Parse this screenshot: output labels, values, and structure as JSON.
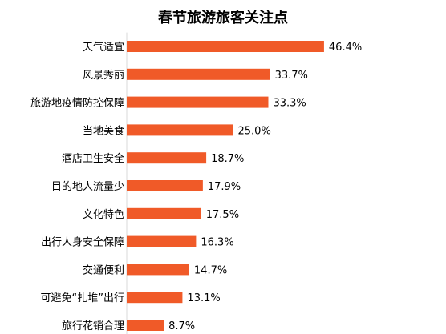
{
  "chart_data": {
    "type": "bar",
    "orientation": "horizontal",
    "title": "春节旅游旅客关注点",
    "categories": [
      "天气适宜",
      "风景秀丽",
      "旅游地疫情防控保障",
      "当地美食",
      "酒店卫生安全",
      "目的地人流量少",
      "文化特色",
      "出行人身安全保障",
      "交通便利",
      "可避免“扎堆”出行",
      "旅行花销合理"
    ],
    "values": [
      46.4,
      33.7,
      33.3,
      25.0,
      18.7,
      17.9,
      17.5,
      16.3,
      14.7,
      13.1,
      8.7
    ],
    "value_labels": [
      "46.4%",
      "33.7%",
      "33.3%",
      "25.0%",
      "18.7%",
      "17.9%",
      "17.5%",
      "16.3%",
      "14.7%",
      "13.1%",
      "8.7%"
    ],
    "unit": "%",
    "bar_color": "#F05A28",
    "axis_color": "#d9d9d9",
    "grid": false,
    "legend": "none"
  }
}
